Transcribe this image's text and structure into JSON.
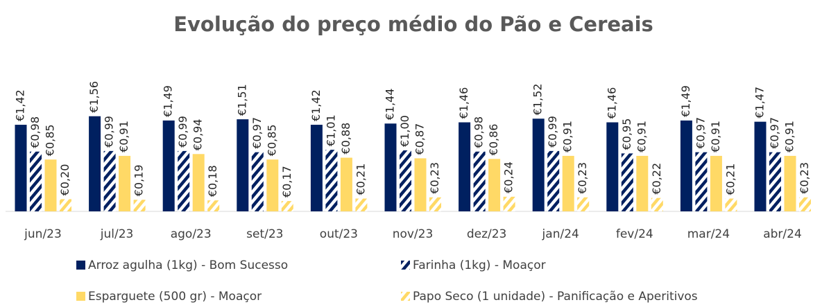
{
  "chart_data": {
    "type": "bar",
    "title": "Evolução do preço médio do Pão e Cereais",
    "categories": [
      "jun/23",
      "jul/23",
      "ago/23",
      "set/23",
      "out/23",
      "nov/23",
      "dez/23",
      "jan/24",
      "fev/24",
      "mar/24",
      "abr/24"
    ],
    "ylim": [
      0,
      2.5
    ],
    "series": [
      {
        "name": "Arroz agulha (1kg) - Bom Sucesso",
        "color": "#002060",
        "pattern": "solid",
        "values": [
          1.42,
          1.56,
          1.49,
          1.51,
          1.42,
          1.44,
          1.46,
          1.52,
          1.46,
          1.49,
          1.47
        ],
        "value_labels": [
          "€1,42",
          "€1,56",
          "€1,49",
          "€1,51",
          "€1,42",
          "€1,44",
          "€1,46",
          "€1,52",
          "€1,46",
          "€1,49",
          "€1,47"
        ]
      },
      {
        "name": "Farinha (1kg) - Moaçor",
        "color": "#002060",
        "pattern": "hatch",
        "values": [
          0.98,
          0.99,
          0.99,
          0.97,
          1.01,
          1.0,
          0.98,
          0.99,
          0.95,
          0.97,
          0.97
        ],
        "value_labels": [
          "€0,98",
          "€0,99",
          "€0,99",
          "€0,97",
          "€1,01",
          "€1,00",
          "€0,98",
          "€0,99",
          "€0,95",
          "€0,97",
          "€0,97"
        ]
      },
      {
        "name": "Esparguete (500 gr) - Moaçor",
        "color": "#FFD966",
        "pattern": "solid",
        "values": [
          0.85,
          0.91,
          0.94,
          0.85,
          0.88,
          0.87,
          0.86,
          0.91,
          0.91,
          0.91,
          0.91
        ],
        "value_labels": [
          "€0,85",
          "€0,91",
          "€0,94",
          "€0,85",
          "€0,88",
          "€0,87",
          "€0,86",
          "€0,91",
          "€0,91",
          "€0,91",
          "€0,91"
        ]
      },
      {
        "name": "Papo Seco (1 unidade) - Panificação e Aperitivos",
        "color": "#FFD966",
        "pattern": "hatch",
        "values": [
          0.2,
          0.19,
          0.18,
          0.17,
          0.21,
          0.23,
          0.24,
          0.23,
          0.22,
          0.21,
          0.23
        ],
        "value_labels": [
          "€0,20",
          "€0,19",
          "€0,18",
          "€0,17",
          "€0,21",
          "€0,23",
          "€0,24",
          "€0,23",
          "€0,22",
          "€0,21",
          "€0,23"
        ]
      }
    ]
  }
}
